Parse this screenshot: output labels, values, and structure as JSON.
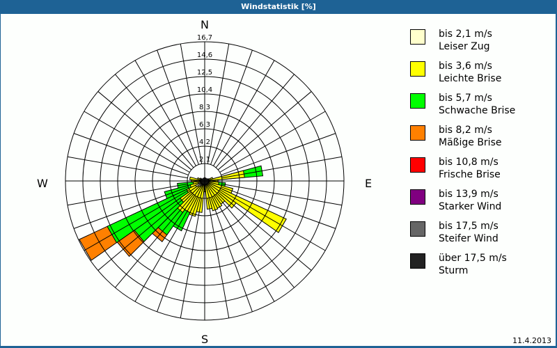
{
  "window": {
    "title": "Windstatistik [%]"
  },
  "compass": {
    "n": "N",
    "e": "E",
    "s": "S",
    "w": "W"
  },
  "footer": {
    "date": "11.4.2013"
  },
  "legend": [
    {
      "line1": "bis 2,1 m/s",
      "line2": "Leiser Zug",
      "color": "#ffffcc"
    },
    {
      "line1": "bis 3,6 m/s",
      "line2": "Leichte Brise",
      "color": "#ffff00"
    },
    {
      "line1": "bis 5,7 m/s",
      "line2": "Schwache Brise",
      "color": "#00ff00"
    },
    {
      "line1": "bis 8,2 m/s",
      "line2": "Mäßige Brise",
      "color": "#ff8000"
    },
    {
      "line1": "bis 10,8 m/s",
      "line2": "Frische Brise",
      "color": "#ff0000"
    },
    {
      "line1": "bis 13,9 m/s",
      "line2": "Starker Wind",
      "color": "#800080"
    },
    {
      "line1": "bis 17,5 m/s",
      "line2": "Steifer Wind",
      "color": "#666666"
    },
    {
      "line1": "über 17,5 m/s",
      "line2": "Sturm",
      "color": "#222222"
    }
  ],
  "chart_data": {
    "type": "wind-rose",
    "title": "Windstatistik [%]",
    "radial_ticks": [
      "2,1",
      "4,2",
      "6,3",
      "8,3",
      "10,4",
      "12,5",
      "14,6",
      "16,7"
    ],
    "radial_max": 16.7,
    "sector_width_deg": 10,
    "categories_speed": [
      "bis 2,1 m/s",
      "bis 3,6 m/s",
      "bis 5,7 m/s",
      "bis 8,2 m/s",
      "bis 10,8 m/s",
      "bis 13,9 m/s",
      "bis 17,5 m/s",
      "über 17,5 m/s"
    ],
    "sectors": [
      {
        "dir": 280,
        "cum": [
          0.6,
          1.8
        ]
      },
      {
        "dir": 290,
        "cum": [
          0.4,
          0.9
        ]
      },
      {
        "dir": 80,
        "cum": [
          0.5,
          4.8,
          7.0
        ]
      },
      {
        "dir": 90,
        "cum": [
          0.4,
          1.6
        ]
      },
      {
        "dir": 100,
        "cum": [
          0.4,
          1.7,
          2.5
        ]
      },
      {
        "dir": 110,
        "cum": [
          0.4,
          3.5
        ]
      },
      {
        "dir": 120,
        "cum": [
          0.4,
          10.8
        ]
      },
      {
        "dir": 130,
        "cum": [
          0.4,
          4.6
        ]
      },
      {
        "dir": 140,
        "cum": [
          0.4,
          3.4
        ]
      },
      {
        "dir": 150,
        "cum": [
          0.4,
          3.6
        ]
      },
      {
        "dir": 160,
        "cum": [
          0.4,
          3.7
        ]
      },
      {
        "dir": 170,
        "cum": [
          0.4,
          3.4
        ]
      },
      {
        "dir": 180,
        "cum": [
          0.4,
          1.3
        ]
      },
      {
        "dir": 190,
        "cum": [
          0.4,
          3.8
        ]
      },
      {
        "dir": 200,
        "cum": [
          0.4,
          4.4
        ]
      },
      {
        "dir": 210,
        "cum": [
          0.6,
          4.2,
          6.6
        ]
      },
      {
        "dir": 220,
        "cum": [
          0.8,
          4.6,
          7.9,
          8.9
        ]
      },
      {
        "dir": 230,
        "cum": [
          1.0,
          3.6,
          10.3,
          12.8
        ]
      },
      {
        "dir": 240,
        "cum": [
          1.2,
          2.4,
          12.9,
          16.6
        ]
      },
      {
        "dir": 250,
        "cum": [
          0.8,
          1.8,
          5.0
        ]
      },
      {
        "dir": 260,
        "cum": [
          0.5,
          1.4,
          3.3
        ]
      },
      {
        "dir": 270,
        "cum": [
          0.5,
          1.6
        ]
      },
      {
        "dir": 300,
        "cum": [
          0.3,
          0.6
        ]
      },
      {
        "dir": 0,
        "cum": [
          0.2,
          0.4
        ]
      },
      {
        "dir": 60,
        "cum": [
          0.2,
          0.5
        ]
      },
      {
        "dir": 70,
        "cum": [
          0.3,
          1.0
        ]
      }
    ]
  }
}
